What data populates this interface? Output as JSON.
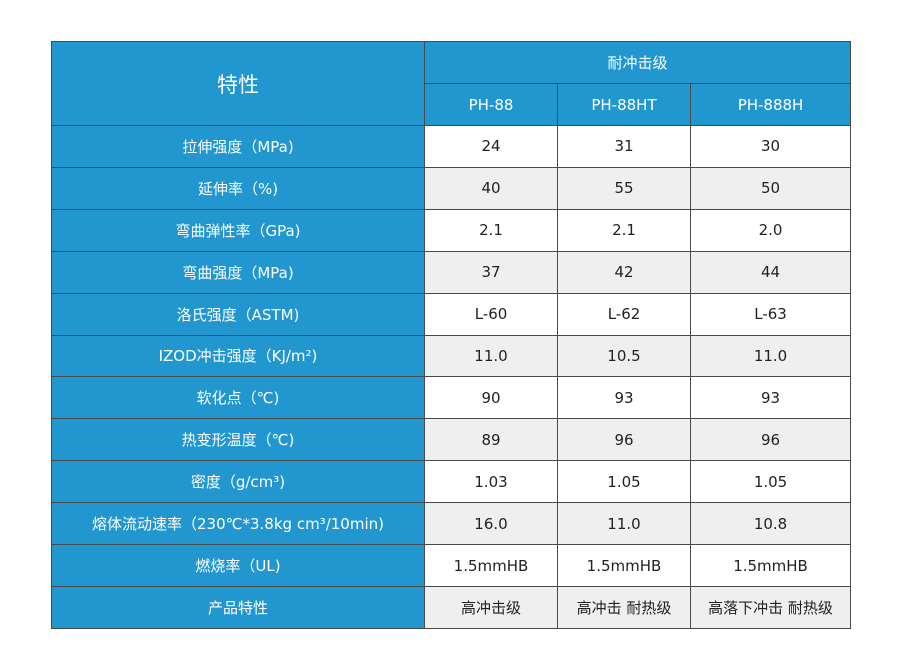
{
  "table": {
    "header_label": "特性",
    "group_label": "耐冲击级",
    "models": [
      "PH-88",
      "PH-88HT",
      "PH-888H"
    ],
    "rows": [
      {
        "property": "拉伸强度（MPa)",
        "values": [
          "24",
          "31",
          "30"
        ]
      },
      {
        "property": "延伸率（%)",
        "values": [
          "40",
          "55",
          "50"
        ]
      },
      {
        "property": "弯曲弹性率（GPa)",
        "values": [
          "2.1",
          "2.1",
          "2.0"
        ]
      },
      {
        "property": "弯曲强度（MPa)",
        "values": [
          "37",
          "42",
          "44"
        ]
      },
      {
        "property": "洛氏强度（ASTM)",
        "values": [
          "L-60",
          "L-62",
          "L-63"
        ]
      },
      {
        "property": "IZOD冲击强度（KJ/m²)",
        "values": [
          "11.0",
          "10.5",
          "11.0"
        ]
      },
      {
        "property": "软化点（℃)",
        "values": [
          "90",
          "93",
          "93"
        ]
      },
      {
        "property": "热变形温度（℃)",
        "values": [
          "89",
          "96",
          "96"
        ]
      },
      {
        "property": "密度（g/cm³)",
        "values": [
          "1.03",
          "1.05",
          "1.05"
        ]
      },
      {
        "property": "熔体流动速率（230℃*3.8kg cm³/10min)",
        "values": [
          "16.0",
          "11.0",
          "10.8"
        ]
      },
      {
        "property": "燃烧率（UL)",
        "values": [
          "1.5mmHB",
          "1.5mmHB",
          "1.5mmHB"
        ]
      },
      {
        "property": "产品特性",
        "values": [
          "高冲击级",
          "高冲击 耐热级",
          "高落下冲击 耐热级"
        ]
      }
    ]
  },
  "colors": {
    "header_blue": "#2196cf",
    "border": "#4a4a4a",
    "row_alt": "#efefef"
  }
}
